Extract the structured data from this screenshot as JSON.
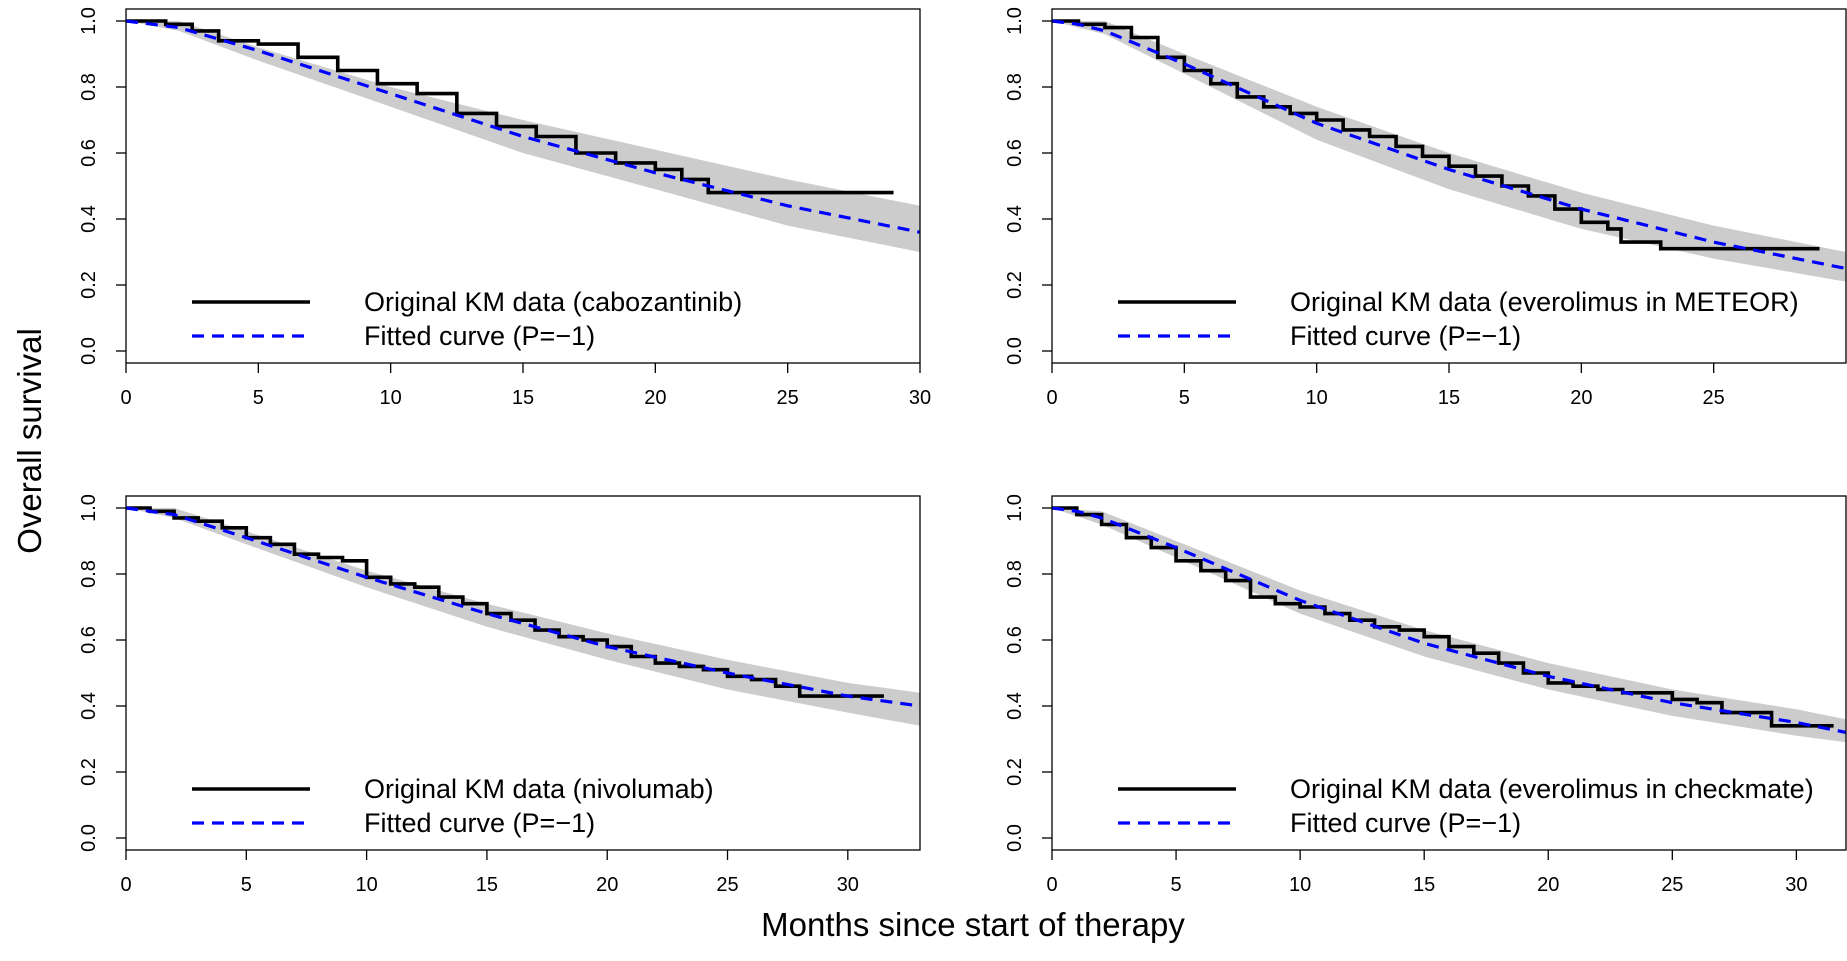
{
  "figure": {
    "ylabel": "Overall survival",
    "xlabel": "Months since start of therapy"
  },
  "chart_data": [
    {
      "type": "line",
      "panel": "top-left",
      "xlim": [
        0,
        30
      ],
      "ylim": [
        0,
        1
      ],
      "xticks": [
        0,
        5,
        10,
        15,
        20,
        25,
        30
      ],
      "yticks": [
        "0.0",
        "0.2",
        "0.4",
        "0.6",
        "0.8",
        "1.0"
      ],
      "legend_position": "bottom-left",
      "band": {
        "x": [
          0,
          2,
          5,
          10,
          15,
          20,
          25,
          30
        ],
        "lower": [
          1.0,
          0.97,
          0.88,
          0.74,
          0.6,
          0.49,
          0.38,
          0.3
        ],
        "upper": [
          1.0,
          1.0,
          0.92,
          0.8,
          0.7,
          0.61,
          0.52,
          0.44
        ]
      },
      "series": [
        {
          "name": "Original KM data (cabozantinib)",
          "style": "step",
          "color": "#000000",
          "x": [
            0,
            1.5,
            2.5,
            3.5,
            5,
            6.5,
            8,
            9.5,
            11,
            12.5,
            14,
            15.5,
            17,
            18.5,
            20,
            21,
            22,
            29
          ],
          "y": [
            1.0,
            0.99,
            0.97,
            0.94,
            0.93,
            0.89,
            0.85,
            0.81,
            0.78,
            0.72,
            0.68,
            0.65,
            0.6,
            0.57,
            0.55,
            0.52,
            0.48,
            0.48
          ]
        },
        {
          "name": "Fitted curve (P=−1)",
          "style": "dashed",
          "color": "#0000ff",
          "x": [
            0,
            1,
            2,
            5,
            10,
            15,
            20,
            25,
            30
          ],
          "y": [
            1.0,
            0.99,
            0.98,
            0.91,
            0.78,
            0.65,
            0.54,
            0.44,
            0.36
          ]
        }
      ]
    },
    {
      "type": "line",
      "panel": "top-right",
      "xlim": [
        0,
        30
      ],
      "ylim": [
        0,
        1
      ],
      "xticks": [
        0,
        5,
        10,
        15,
        20,
        25
      ],
      "yticks": [
        "0.0",
        "0.2",
        "0.4",
        "0.6",
        "0.8",
        "1.0"
      ],
      "legend_position": "bottom-left",
      "band": {
        "x": [
          0,
          2,
          5,
          10,
          15,
          20,
          25,
          30
        ],
        "lower": [
          1.0,
          0.96,
          0.84,
          0.64,
          0.49,
          0.37,
          0.28,
          0.21
        ],
        "upper": [
          1.0,
          1.0,
          0.9,
          0.74,
          0.6,
          0.48,
          0.38,
          0.3
        ]
      },
      "series": [
        {
          "name": "Original KM data (everolimus in METEOR)",
          "style": "step",
          "color": "#000000",
          "x": [
            0,
            1,
            2,
            3,
            4,
            5,
            6,
            7,
            8,
            9,
            10,
            11,
            12,
            13,
            14,
            15,
            16,
            17,
            18,
            19,
            20,
            21,
            21.5,
            23,
            29
          ],
          "y": [
            1.0,
            0.99,
            0.98,
            0.95,
            0.89,
            0.85,
            0.81,
            0.77,
            0.74,
            0.72,
            0.7,
            0.67,
            0.65,
            0.62,
            0.59,
            0.56,
            0.53,
            0.5,
            0.47,
            0.43,
            0.39,
            0.37,
            0.33,
            0.31,
            0.31
          ]
        },
        {
          "name": "Fitted curve (P=−1)",
          "style": "dashed",
          "color": "#0000ff",
          "x": [
            0,
            1,
            2,
            5,
            10,
            15,
            20,
            25,
            30
          ],
          "y": [
            1.0,
            0.99,
            0.97,
            0.87,
            0.69,
            0.55,
            0.43,
            0.33,
            0.25
          ]
        }
      ]
    },
    {
      "type": "line",
      "panel": "bottom-left",
      "xlim": [
        0,
        33
      ],
      "ylim": [
        0,
        1
      ],
      "xticks": [
        0,
        5,
        10,
        15,
        20,
        25,
        30
      ],
      "yticks": [
        "0.0",
        "0.2",
        "0.4",
        "0.6",
        "0.8",
        "1.0"
      ],
      "legend_position": "bottom-left",
      "band": {
        "x": [
          0,
          2,
          5,
          10,
          15,
          20,
          25,
          30,
          33
        ],
        "lower": [
          1.0,
          0.97,
          0.89,
          0.76,
          0.64,
          0.54,
          0.45,
          0.38,
          0.34
        ],
        "upper": [
          1.0,
          1.0,
          0.93,
          0.81,
          0.71,
          0.62,
          0.54,
          0.47,
          0.44
        ]
      },
      "series": [
        {
          "name": "Original KM data (nivolumab)",
          "style": "step",
          "color": "#000000",
          "x": [
            0,
            1,
            2,
            3,
            4,
            5,
            6,
            7,
            8,
            9,
            10,
            11,
            12,
            13,
            14,
            15,
            16,
            17,
            18,
            19,
            20,
            21,
            22,
            23,
            24,
            25,
            26,
            27,
            28,
            31.5
          ],
          "y": [
            1.0,
            0.99,
            0.97,
            0.96,
            0.94,
            0.91,
            0.89,
            0.86,
            0.85,
            0.84,
            0.79,
            0.77,
            0.76,
            0.73,
            0.71,
            0.68,
            0.66,
            0.63,
            0.61,
            0.6,
            0.58,
            0.55,
            0.53,
            0.52,
            0.51,
            0.49,
            0.48,
            0.46,
            0.43,
            0.43
          ]
        },
        {
          "name": "Fitted curve (P=−1)",
          "style": "dashed",
          "color": "#0000ff",
          "x": [
            0,
            1,
            2,
            5,
            10,
            15,
            20,
            25,
            30,
            33
          ],
          "y": [
            1.0,
            0.99,
            0.98,
            0.91,
            0.79,
            0.68,
            0.58,
            0.5,
            0.43,
            0.4
          ]
        }
      ]
    },
    {
      "type": "line",
      "panel": "bottom-right",
      "xlim": [
        0,
        32
      ],
      "ylim": [
        0,
        1
      ],
      "xticks": [
        0,
        5,
        10,
        15,
        20,
        25,
        30
      ],
      "yticks": [
        "0.0",
        "0.2",
        "0.4",
        "0.6",
        "0.8",
        "1.0"
      ],
      "legend_position": "bottom-left",
      "band": {
        "x": [
          0,
          2,
          5,
          10,
          15,
          20,
          25,
          30,
          32
        ],
        "lower": [
          1.0,
          0.95,
          0.85,
          0.68,
          0.55,
          0.45,
          0.37,
          0.31,
          0.29
        ],
        "upper": [
          1.0,
          0.99,
          0.9,
          0.75,
          0.63,
          0.53,
          0.45,
          0.39,
          0.36
        ]
      },
      "series": [
        {
          "name": "Original KM data (everolimus in checkmate)",
          "style": "step",
          "color": "#000000",
          "x": [
            0,
            1,
            2,
            3,
            4,
            5,
            6,
            7,
            8,
            9,
            10,
            11,
            12,
            13,
            14,
            15,
            16,
            17,
            18,
            19,
            20,
            21,
            22,
            23,
            24,
            25,
            26,
            27,
            29,
            31.5
          ],
          "y": [
            1.0,
            0.98,
            0.95,
            0.91,
            0.88,
            0.84,
            0.81,
            0.78,
            0.73,
            0.71,
            0.7,
            0.68,
            0.66,
            0.64,
            0.63,
            0.61,
            0.58,
            0.56,
            0.53,
            0.5,
            0.47,
            0.46,
            0.45,
            0.44,
            0.44,
            0.42,
            0.41,
            0.38,
            0.34,
            0.34
          ]
        },
        {
          "name": "Fitted curve (P=−1)",
          "style": "dashed",
          "color": "#0000ff",
          "x": [
            0,
            1,
            2,
            5,
            10,
            15,
            20,
            25,
            30,
            32
          ],
          "y": [
            1.0,
            0.99,
            0.97,
            0.88,
            0.72,
            0.59,
            0.49,
            0.41,
            0.35,
            0.32
          ]
        }
      ]
    }
  ]
}
